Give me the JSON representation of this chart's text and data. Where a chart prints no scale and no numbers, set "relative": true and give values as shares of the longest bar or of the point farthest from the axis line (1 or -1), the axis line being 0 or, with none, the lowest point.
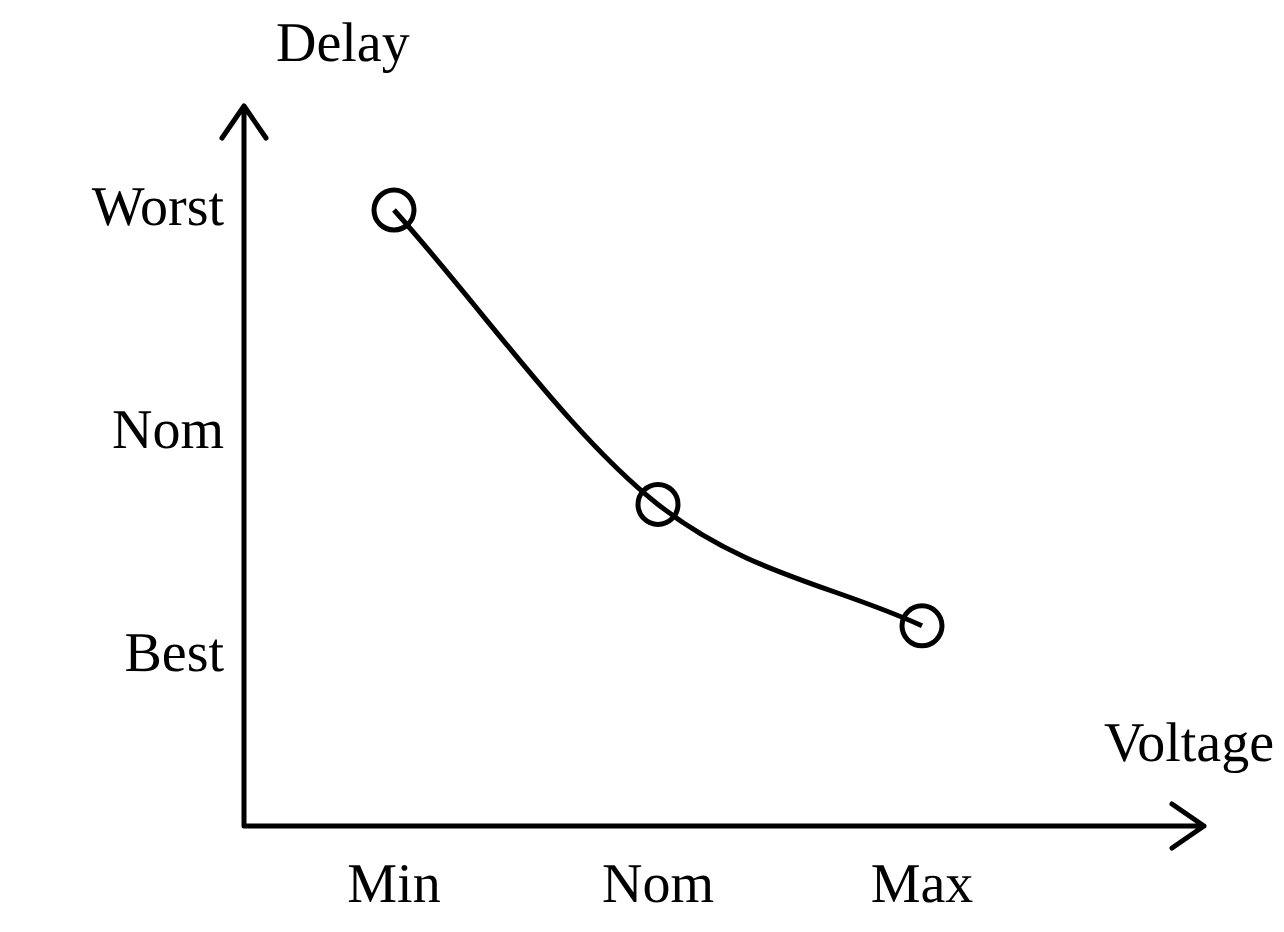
{
  "chart_data": {
    "type": "line",
    "xlabel": "Voltage",
    "ylabel": "Delay",
    "relative": true,
    "categories": [
      "Min",
      "Nom",
      "Max"
    ],
    "annotations": [
      "Worst",
      "Nom",
      "Best"
    ],
    "grid": false,
    "legend": false,
    "marker": "circle",
    "series": [
      {
        "color": "#000000",
        "values": [
          1,
          0.522,
          0.325
        ]
      }
    ]
  }
}
